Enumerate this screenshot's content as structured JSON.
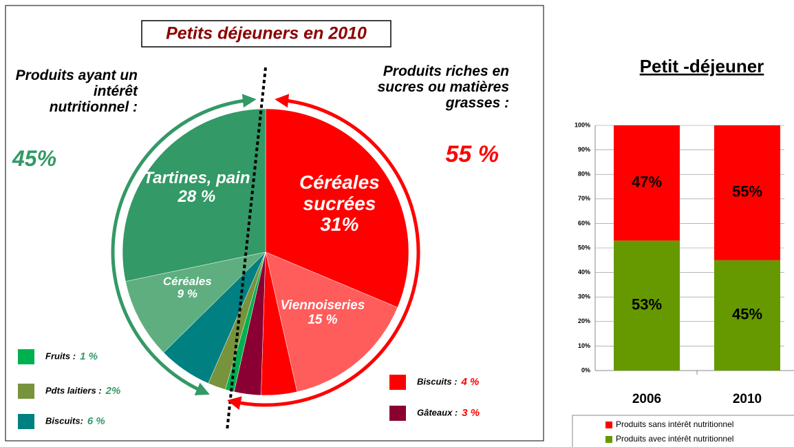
{
  "chart_data": [
    {
      "type": "pie",
      "title": "Petits déjeuners en 2010",
      "categories": [
        "Céréales sucrées",
        "Viennoiseries",
        "Biscuits :",
        "Gâteaux :",
        "Fruits :",
        "Pdts laitiers :",
        "Biscuits:",
        "Céréales",
        "Tartines, pain"
      ],
      "values": [
        31,
        15,
        4,
        3,
        1,
        2,
        6,
        9,
        28
      ],
      "value_labels": [
        "31%",
        "15 %",
        "4 %",
        "3 %",
        "1 %",
        "2%",
        "6 %",
        "9 %",
        "28 %"
      ],
      "colors": [
        "#ff0000",
        "#ff5c5c",
        "#ff0000",
        "#8b0033",
        "#00b050",
        "#77933c",
        "#008080",
        "#5fae7f",
        "#339966"
      ],
      "groups": [
        {
          "label": "Produits riches en sucres ou matières grasses :",
          "value": 55,
          "value_label": "55 %",
          "color": "#ff0000"
        },
        {
          "label": "Produits ayant un intérêt nutritionnel :",
          "value": 45,
          "value_label": "45%",
          "color": "#339966"
        }
      ]
    },
    {
      "type": "bar",
      "stacked": true,
      "title": "Petit -déjeuner",
      "categories": [
        "2006",
        "2010"
      ],
      "series": [
        {
          "name": "Produits avec intérêt nutritionnel",
          "color": "#669900",
          "values": [
            53,
            45
          ],
          "value_labels": [
            "53%",
            "45%"
          ]
        },
        {
          "name": "Produits sans intérêt nutritionnel",
          "color": "#ff0000",
          "values": [
            47,
            55
          ],
          "value_labels": [
            "47%",
            "55%"
          ]
        }
      ],
      "ylim": [
        0,
        100
      ],
      "yticks": [
        {
          "value": 0,
          "label": "0%"
        },
        {
          "value": 10,
          "label": "10%"
        },
        {
          "value": 20,
          "label": "20%"
        },
        {
          "value": 30,
          "label": "30%"
        },
        {
          "value": 40,
          "label": "40%"
        },
        {
          "value": 50,
          "label": "50%"
        },
        {
          "value": 60,
          "label": "60%"
        },
        {
          "value": 70,
          "label": "70%"
        },
        {
          "value": 80,
          "label": "80%"
        },
        {
          "value": 90,
          "label": "90%"
        },
        {
          "value": 100,
          "label": "100%"
        }
      ],
      "legend": "bottom"
    }
  ]
}
